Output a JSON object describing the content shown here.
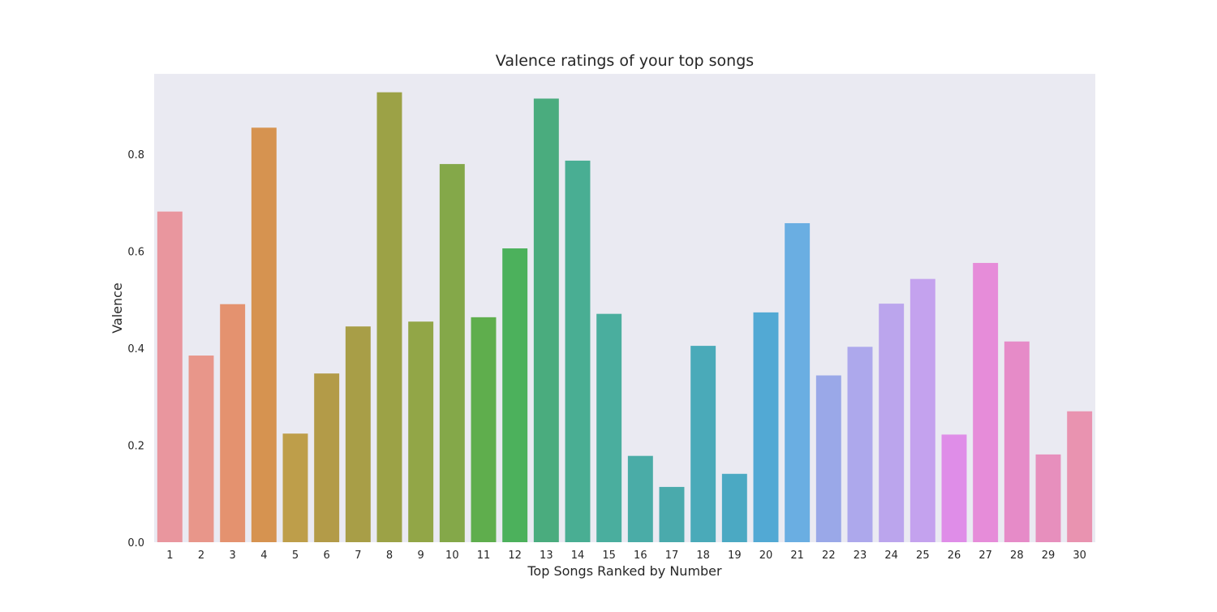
{
  "chart_data": {
    "type": "bar",
    "title": "Valence ratings of your top songs",
    "xlabel": "Top Songs Ranked by Number",
    "ylabel": "Valence",
    "categories": [
      "1",
      "2",
      "3",
      "4",
      "5",
      "6",
      "7",
      "8",
      "9",
      "10",
      "11",
      "12",
      "13",
      "14",
      "15",
      "16",
      "17",
      "18",
      "19",
      "20",
      "21",
      "22",
      "23",
      "24",
      "25",
      "26",
      "27",
      "28",
      "29",
      "30"
    ],
    "values": [
      0.682,
      0.385,
      0.491,
      0.855,
      0.224,
      0.348,
      0.445,
      0.928,
      0.455,
      0.78,
      0.464,
      0.606,
      0.915,
      0.787,
      0.471,
      0.178,
      0.114,
      0.405,
      0.141,
      0.474,
      0.658,
      0.344,
      0.403,
      0.492,
      0.543,
      0.222,
      0.576,
      0.414,
      0.181,
      0.27
    ],
    "colors": [
      "#e9969e",
      "#e8968a",
      "#e4926f",
      "#d69350",
      "#be9e4a",
      "#b39b48",
      "#a89e47",
      "#9ca246",
      "#92a647",
      "#84a849",
      "#5fae4d",
      "#4cb15c",
      "#4aac7e",
      "#49ae93",
      "#4aae9e",
      "#4aaca7",
      "#4aaaac",
      "#4aaab9",
      "#4ba9c3",
      "#52a9d4",
      "#6aaee2",
      "#9aa8e8",
      "#ada8ec",
      "#bba5ed",
      "#c4a2ee",
      "#df8de8",
      "#e68cd9",
      "#e68bc8",
      "#e78fbd",
      "#e993b0"
    ],
    "ylim": [
      0.0,
      0.966
    ],
    "yticks": [
      0.0,
      0.2,
      0.4,
      0.6,
      0.8
    ],
    "ytick_labels": [
      "0.0",
      "0.2",
      "0.4",
      "0.6",
      "0.8"
    ],
    "grid": false,
    "background_color": "#eaeaf2"
  }
}
